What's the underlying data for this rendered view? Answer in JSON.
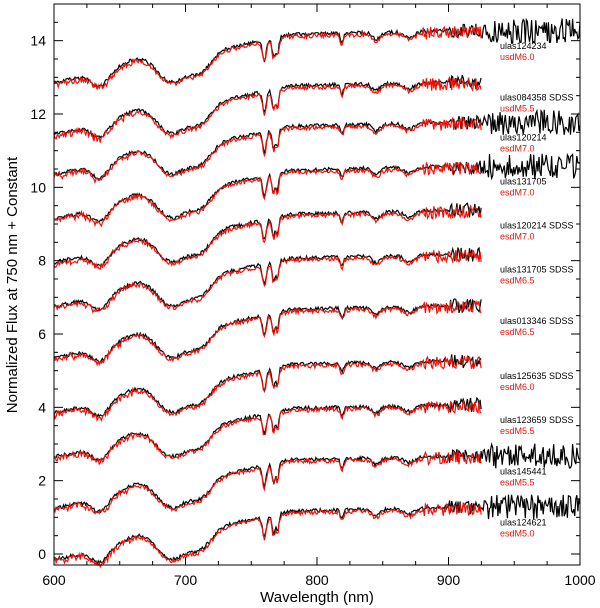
{
  "chart_data": {
    "type": "line",
    "title": "",
    "xlabel": "Wavelength (nm)",
    "ylabel": "Normalized Flux at 750 nm + Constant",
    "xlim": [
      600,
      1000
    ],
    "ylim": [
      -0.3,
      15
    ],
    "x_ticks": [
      600,
      700,
      800,
      900,
      1000
    ],
    "y_ticks": [
      0,
      2,
      4,
      6,
      8,
      10,
      12,
      14
    ],
    "colors": {
      "object": "#000000",
      "template": "#e8140c"
    },
    "spectra": [
      {
        "object": "ulas124234",
        "template": "usdM6.0",
        "level": 14.1,
        "object_end": 1000,
        "template_end": 925
      },
      {
        "object": "ulas084358 SDSS",
        "template": "usdM5.5",
        "level": 12.7,
        "object_end": 925,
        "template_end": 925
      },
      {
        "object": "ulas120214",
        "template": "esdM7.0",
        "level": 11.6,
        "object_end": 1000,
        "template_end": 925
      },
      {
        "object": "ulas131705",
        "template": "esdM7.0",
        "level": 10.4,
        "object_end": 1000,
        "template_end": 925
      },
      {
        "object": "ulas120214 SDSS",
        "template": "esdM7.0",
        "level": 9.2,
        "object_end": 925,
        "template_end": 925
      },
      {
        "object": "ulas131705 SDSS",
        "template": "esdM6.5",
        "level": 8.0,
        "object_end": 925,
        "template_end": 925
      },
      {
        "object": "ulas013346 SDSS",
        "template": "esdM6.5",
        "level": 6.6,
        "object_end": 925,
        "template_end": 925
      },
      {
        "object": "ulas125635 SDSS",
        "template": "esdM6.0",
        "level": 5.1,
        "object_end": 925,
        "template_end": 925
      },
      {
        "object": "ulas123659 SDSS",
        "template": "esdM5.5",
        "level": 3.9,
        "object_end": 925,
        "template_end": 925
      },
      {
        "object": "ulas145441",
        "template": "esdM5.5",
        "level": 2.5,
        "object_end": 1000,
        "template_end": 925
      },
      {
        "object": "ulas124621",
        "template": "esdM5.0",
        "level": 1.1,
        "object_end": 1000,
        "template_end": 925
      }
    ]
  }
}
